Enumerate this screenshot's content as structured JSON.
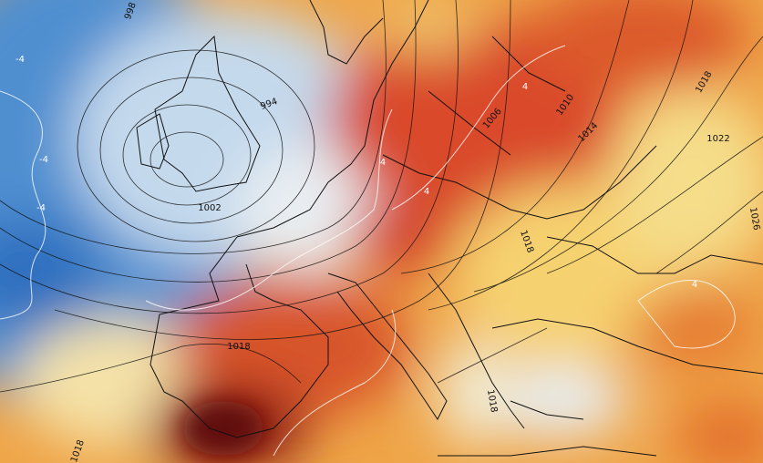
{
  "isobar_labels": [
    "998",
    "994",
    "1002",
    "1006",
    "1010",
    "1014",
    "1018",
    "1022",
    "1026",
    "1018",
    "1018",
    "1018",
    "1018"
  ],
  "isotherm_labels": [
    "-4",
    "-4",
    "-4",
    "4",
    "4",
    "4",
    "4"
  ]
}
